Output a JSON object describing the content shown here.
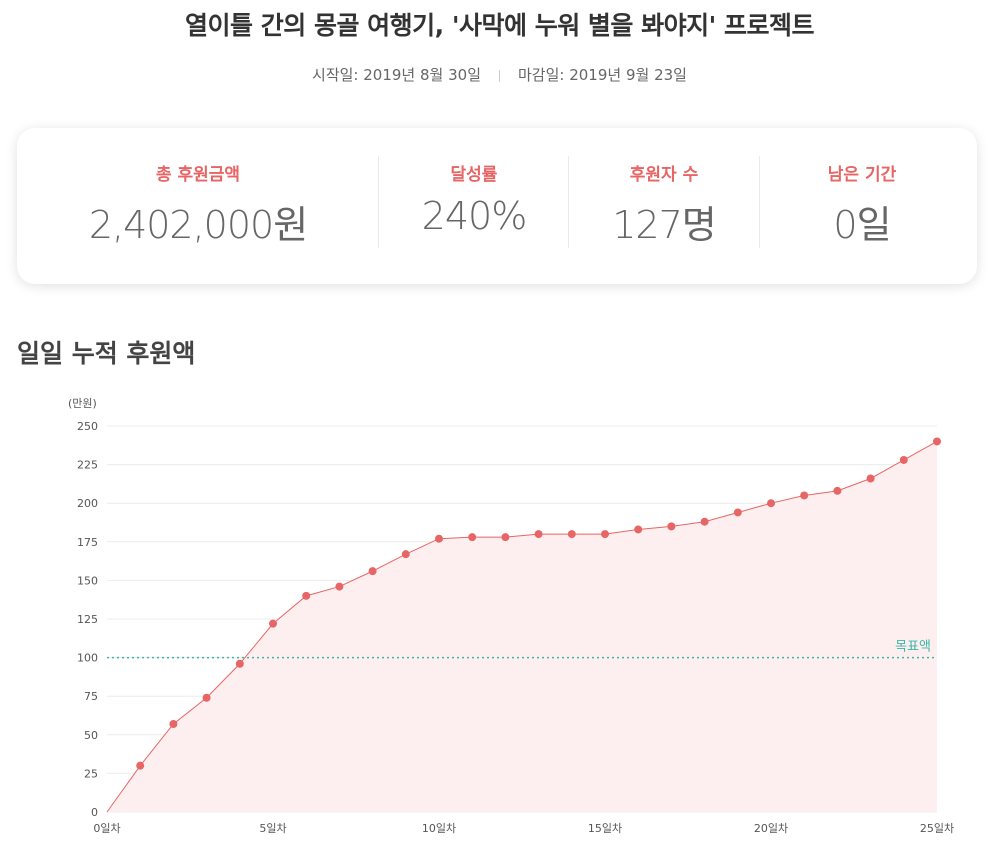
{
  "header": {
    "title": "열이틀 간의 몽골 여행기, '사막에 누워 별을 봐야지' 프로젝트",
    "start_date": "시작일: 2019년 8월 30일",
    "end_date": "마감일: 2019년 9월 23일"
  },
  "stats": [
    {
      "label": "총 후원금액",
      "value": "2,402,000원"
    },
    {
      "label": "달성률",
      "value": "240%"
    },
    {
      "label": "후원자 수",
      "value": "127명"
    },
    {
      "label": "남은 기간",
      "value": "0일"
    }
  ],
  "section": {
    "title": "일일 누적 후원액"
  },
  "colors": {
    "accent": "#e86565",
    "line": "#e86565",
    "fill": "#fdeff0",
    "goal": "#3bb5a6",
    "grid": "#ececec"
  },
  "chart_data": {
    "type": "area",
    "unit_label": "(만원)",
    "ylim": [
      0,
      250
    ],
    "yticks": [
      0,
      25,
      50,
      75,
      100,
      125,
      150,
      175,
      200,
      225,
      250
    ],
    "xlim": [
      0,
      25
    ],
    "xticks": [
      {
        "x": 0,
        "label": "0일차"
      },
      {
        "x": 5,
        "label": "5일차"
      },
      {
        "x": 10,
        "label": "10일차"
      },
      {
        "x": 15,
        "label": "15일차"
      },
      {
        "x": 20,
        "label": "20일차"
      },
      {
        "x": 25,
        "label": "25일차"
      }
    ],
    "x": [
      0,
      1,
      2,
      3,
      4,
      5,
      6,
      7,
      8,
      9,
      10,
      11,
      12,
      13,
      14,
      15,
      16,
      17,
      18,
      19,
      20,
      21,
      22,
      23,
      24,
      25
    ],
    "values": [
      0,
      30,
      57,
      74,
      96,
      122,
      140,
      146,
      156,
      167,
      177,
      178,
      178,
      180,
      180,
      180,
      183,
      185,
      188,
      194,
      200,
      205,
      208,
      216,
      228,
      240
    ],
    "goal": {
      "value": 100,
      "label": "목표액"
    },
    "grid": true
  }
}
